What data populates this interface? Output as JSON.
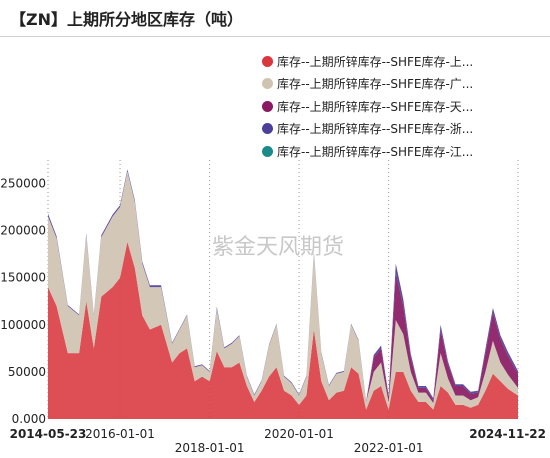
{
  "title": "【ZN】上期所分地区库存（吨）",
  "watermark": "紫金天风期货",
  "chart_data": {
    "type": "area",
    "stacked": true,
    "ylim": [
      0,
      275000
    ],
    "yticks": [
      "0.000",
      "50000",
      "100000",
      "150000",
      "200000",
      "250000"
    ],
    "ytick_values": [
      0,
      50000,
      100000,
      150000,
      200000,
      250000
    ],
    "x_start": "2014-05-23",
    "x_end": "2024-11-22",
    "xticks": [
      {
        "label": "2014-05-23",
        "date": "2014-05-23",
        "row": 0,
        "bold": true
      },
      {
        "label": "2016-01-01",
        "date": "2016-01-01",
        "row": 0,
        "bold": false
      },
      {
        "label": "2018-01-01",
        "date": "2018-01-01",
        "row": 1,
        "bold": false
      },
      {
        "label": "2020-01-01",
        "date": "2020-01-01",
        "row": 0,
        "bold": false
      },
      {
        "label": "2022-01-01",
        "date": "2022-01-01",
        "row": 1,
        "bold": false
      },
      {
        "label": "2024-11-22",
        "date": "2024-11-22",
        "row": 0,
        "bold": true
      }
    ],
    "grid": "vertical-dotted",
    "legend_position": "top-right",
    "x": [
      "2014-05-23",
      "2014-08-01",
      "2014-11-01",
      "2015-02-01",
      "2015-04-01",
      "2015-06-01",
      "2015-08-01",
      "2015-11-01",
      "2016-01-01",
      "2016-03-01",
      "2016-05-01",
      "2016-07-01",
      "2016-09-01",
      "2016-12-01",
      "2017-03-01",
      "2017-05-01",
      "2017-07-01",
      "2017-09-01",
      "2017-11-01",
      "2018-01-01",
      "2018-03-01",
      "2018-05-01",
      "2018-07-01",
      "2018-09-01",
      "2018-11-01",
      "2019-01-01",
      "2019-03-01",
      "2019-05-01",
      "2019-07-01",
      "2019-09-01",
      "2019-11-01",
      "2020-01-01",
      "2020-03-01",
      "2020-05-01",
      "2020-07-01",
      "2020-09-01",
      "2020-11-01",
      "2021-01-01",
      "2021-03-01",
      "2021-05-01",
      "2021-07-01",
      "2021-09-01",
      "2021-11-01",
      "2022-01-01",
      "2022-03-01",
      "2022-05-01",
      "2022-07-01",
      "2022-09-01",
      "2022-11-01",
      "2023-01-01",
      "2023-03-01",
      "2023-05-01",
      "2023-07-01",
      "2023-09-01",
      "2023-11-01",
      "2024-01-01",
      "2024-03-01",
      "2024-05-01",
      "2024-07-01",
      "2024-09-01",
      "2024-11-22"
    ],
    "series": [
      {
        "name": "库存--上期所锌库存--SHFE库存-上...",
        "color": "#d9363e",
        "values": [
          140000,
          120000,
          70000,
          70000,
          125000,
          75000,
          130000,
          140000,
          150000,
          188000,
          160000,
          110000,
          95000,
          100000,
          60000,
          70000,
          75000,
          40000,
          45000,
          40000,
          72000,
          55000,
          55000,
          60000,
          35000,
          18000,
          30000,
          45000,
          55000,
          30000,
          25000,
          15000,
          25000,
          95000,
          40000,
          20000,
          28000,
          30000,
          55000,
          48000,
          10000,
          30000,
          35000,
          10000,
          50000,
          50000,
          30000,
          18000,
          18000,
          10000,
          35000,
          28000,
          15000,
          15000,
          12000,
          15000,
          30000,
          48000,
          40000,
          32000,
          25000
        ]
      },
      {
        "name": "库存--上期所锌库存--SHFE库存-广...",
        "color": "#cfc3b1",
        "values": [
          75000,
          72000,
          50000,
          40000,
          70000,
          35000,
          63000,
          75000,
          75000,
          75000,
          70000,
          55000,
          45000,
          40000,
          20000,
          25000,
          35000,
          15000,
          12000,
          10000,
          45000,
          20000,
          25000,
          28000,
          10000,
          7000,
          10000,
          33000,
          45000,
          15000,
          13000,
          10000,
          20000,
          80000,
          30000,
          15000,
          20000,
          20000,
          45000,
          35000,
          8000,
          20000,
          25000,
          8000,
          55000,
          40000,
          20000,
          10000,
          10000,
          7000,
          35000,
          15000,
          10000,
          10000,
          8000,
          8000,
          20000,
          35000,
          20000,
          15000,
          8000
        ]
      },
      {
        "name": "库存--上期所锌库存--SHFE库存-天...",
        "color": "#8a1a63",
        "values": [
          0,
          0,
          0,
          0,
          0,
          0,
          0,
          0,
          0,
          0,
          0,
          0,
          0,
          0,
          0,
          0,
          0,
          0,
          0,
          0,
          0,
          0,
          0,
          0,
          0,
          0,
          0,
          0,
          0,
          0,
          0,
          0,
          0,
          0,
          0,
          0,
          0,
          0,
          0,
          0,
          0,
          15000,
          15000,
          5000,
          50000,
          30000,
          15000,
          5000,
          5000,
          3000,
          25000,
          15000,
          10000,
          10000,
          7000,
          5000,
          20000,
          30000,
          25000,
          20000,
          15000
        ]
      },
      {
        "name": "库存--上期所锌库存--SHFE库存-浙...",
        "color": "#4b3f99",
        "values": [
          3000,
          2000,
          1000,
          1000,
          2000,
          1000,
          2000,
          2000,
          2000,
          2000,
          2000,
          2000,
          2000,
          2000,
          1000,
          1000,
          1000,
          1000,
          1000,
          1000,
          2000,
          1000,
          1000,
          1000,
          1000,
          1000,
          1000,
          1000,
          1000,
          1000,
          1000,
          1000,
          1000,
          2000,
          1000,
          1000,
          1000,
          1000,
          1000,
          1000,
          1000,
          3000,
          3000,
          2000,
          10000,
          7000,
          4000,
          2000,
          2000,
          2000,
          5000,
          3000,
          2000,
          2000,
          2000,
          2000,
          4000,
          5000,
          4000,
          4000,
          3000
        ]
      },
      {
        "name": "库存--上期所锌库存--SHFE库存-江...",
        "color": "#1a8a8a",
        "values": [
          0,
          0,
          0,
          0,
          0,
          0,
          0,
          0,
          0,
          0,
          0,
          0,
          0,
          0,
          0,
          0,
          0,
          0,
          0,
          0,
          0,
          0,
          0,
          0,
          0,
          0,
          0,
          0,
          0,
          0,
          0,
          0,
          0,
          0,
          0,
          0,
          0,
          0,
          0,
          0,
          0,
          0,
          0,
          0,
          0,
          0,
          0,
          0,
          0,
          0,
          0,
          0,
          0,
          0,
          0,
          0,
          0,
          0,
          0,
          0,
          0
        ]
      }
    ]
  }
}
